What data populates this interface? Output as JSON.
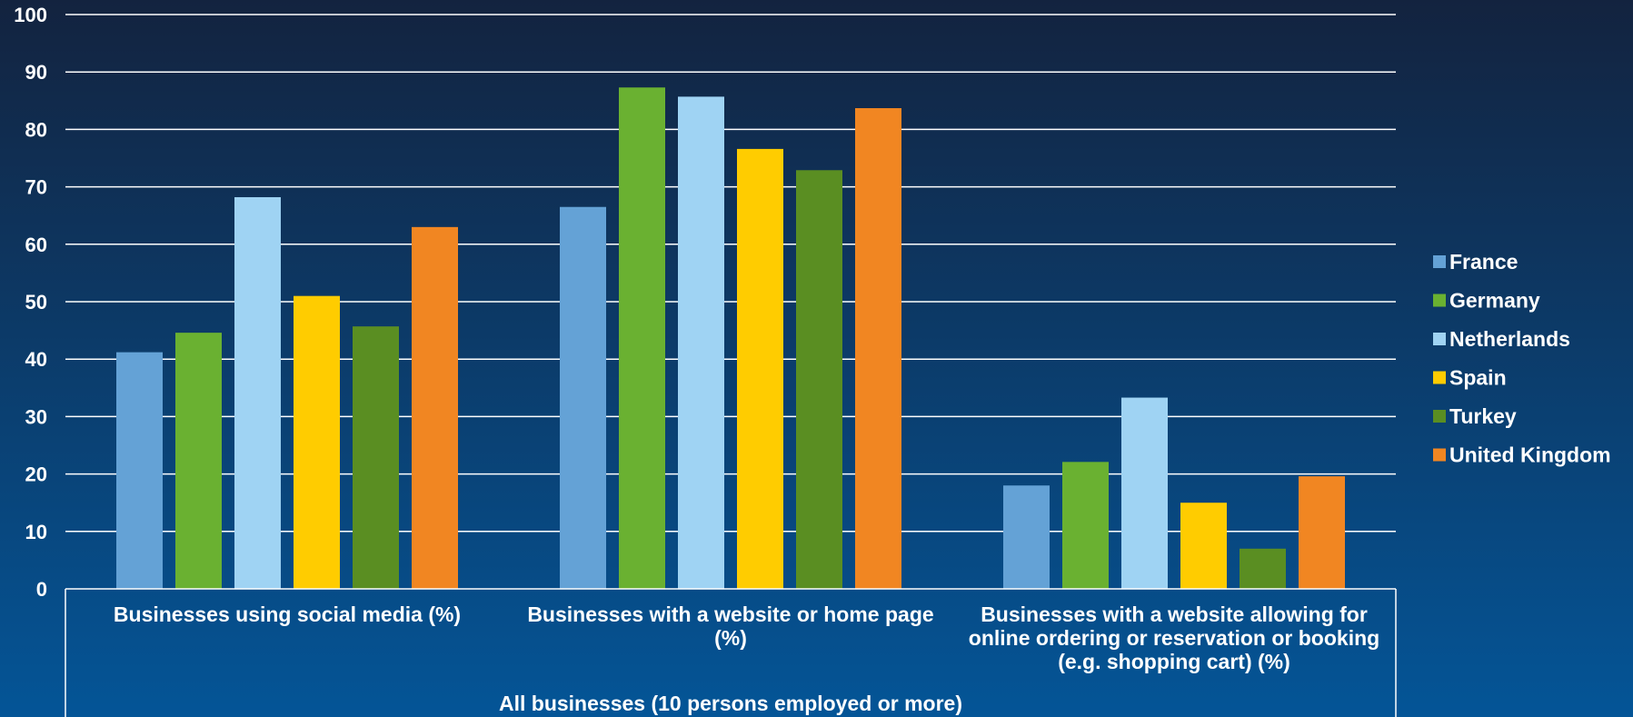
{
  "chart_data": {
    "type": "bar",
    "categories": [
      [
        "Businesses using social media (%)"
      ],
      [
        "Businesses with a website or home page",
        "(%)"
      ],
      [
        "Businesses with a website allowing for",
        "online ordering or reservation or booking",
        "(e.g. shopping cart) (%)"
      ]
    ],
    "group_label": "All businesses (10 persons employed or more)",
    "series": [
      {
        "name": "France",
        "color": "#64a2d6",
        "values": [
          41.2,
          66.5,
          18.0
        ]
      },
      {
        "name": "Germany",
        "color": "#6ab131",
        "values": [
          44.6,
          87.3,
          22.1
        ]
      },
      {
        "name": "Netherlands",
        "color": "#9fd3f3",
        "values": [
          68.2,
          85.7,
          33.3
        ]
      },
      {
        "name": "Spain",
        "color": "#ffcc00",
        "values": [
          51.0,
          76.6,
          15.0
        ]
      },
      {
        "name": "Turkey",
        "color": "#5a8e22",
        "values": [
          45.7,
          72.9,
          7.0
        ]
      },
      {
        "name": "United Kingdom",
        "color": "#f18622",
        "values": [
          63.0,
          83.7,
          19.6
        ]
      }
    ],
    "ylim": [
      0,
      100
    ],
    "yticks": [
      0,
      10,
      20,
      30,
      40,
      50,
      60,
      70,
      80,
      90,
      100
    ],
    "grid": true,
    "legend_position": "right",
    "background_gradient": [
      "#13233f",
      "#045597"
    ]
  }
}
